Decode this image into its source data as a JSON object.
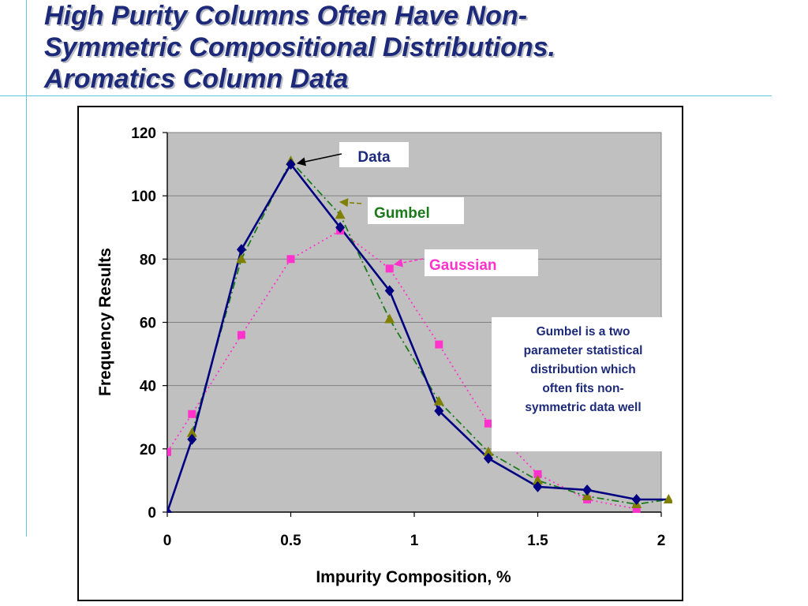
{
  "slide": {
    "title_lines": [
      "High Purity Columns Often Have Non-",
      "Symmetric Compositional Distributions.",
      "Aromatics Column Data"
    ]
  },
  "colors": {
    "title": "#1d2a7a",
    "plot_background": "#c0c0c0",
    "data_series": "#000080",
    "gumbel_series": "#1a7a1a",
    "gumbel_markers": "#808000",
    "gaussian_series": "#ff33cc",
    "note_text": "#1d2a7a"
  },
  "chart_data": {
    "type": "scatter",
    "title": "",
    "xlabel": "Impurity Composition, %",
    "ylabel": "Frequency Results",
    "xlim": [
      0,
      2
    ],
    "ylim": [
      0,
      120
    ],
    "x_ticks": [
      0,
      0.5,
      1,
      1.5,
      2
    ],
    "x_tick_labels": [
      "0",
      "0.5",
      "1",
      "1.5",
      "2"
    ],
    "y_ticks": [
      0,
      20,
      40,
      60,
      80,
      100,
      120
    ],
    "y_tick_labels": [
      "0",
      "20",
      "40",
      "60",
      "80",
      "100",
      "120"
    ],
    "grid": "horizontal",
    "series": [
      {
        "name": "Data",
        "style": "solid line with diamond markers",
        "color": "#000080",
        "x": [
          0,
          0.1,
          0.3,
          0.5,
          0.7,
          0.9,
          1.1,
          1.3,
          1.5,
          1.7,
          1.9,
          2.03
        ],
        "y": [
          0,
          23,
          83,
          110,
          90,
          70,
          32,
          17,
          8,
          7,
          4,
          4
        ]
      },
      {
        "name": "Gumbel",
        "style": "dash-dot line with triangle markers",
        "color": "#1a7a1a",
        "x": [
          0.1,
          0.3,
          0.5,
          0.7,
          0.9,
          1.1,
          1.3,
          1.5,
          1.7,
          1.9,
          2.03
        ],
        "y": [
          25,
          80,
          111,
          94,
          61,
          35,
          19,
          10,
          5,
          2.5,
          4
        ]
      },
      {
        "name": "Gaussian",
        "style": "dotted line with square markers",
        "color": "#ff33cc",
        "x": [
          0,
          0.1,
          0.3,
          0.5,
          0.7,
          0.9,
          1.1,
          1.3,
          1.5,
          1.7,
          1.9
        ],
        "y": [
          19,
          31,
          56,
          80,
          89,
          77,
          53,
          28,
          12,
          4,
          1
        ]
      }
    ],
    "annotations": {
      "data_label": "Data",
      "gumbel_label": "Gumbel",
      "gaussian_label": "Gaussian",
      "note": [
        "Gumbel is a two",
        "parameter statistical",
        "distribution which",
        "often fits non-",
        "symmetric data well"
      ]
    }
  }
}
